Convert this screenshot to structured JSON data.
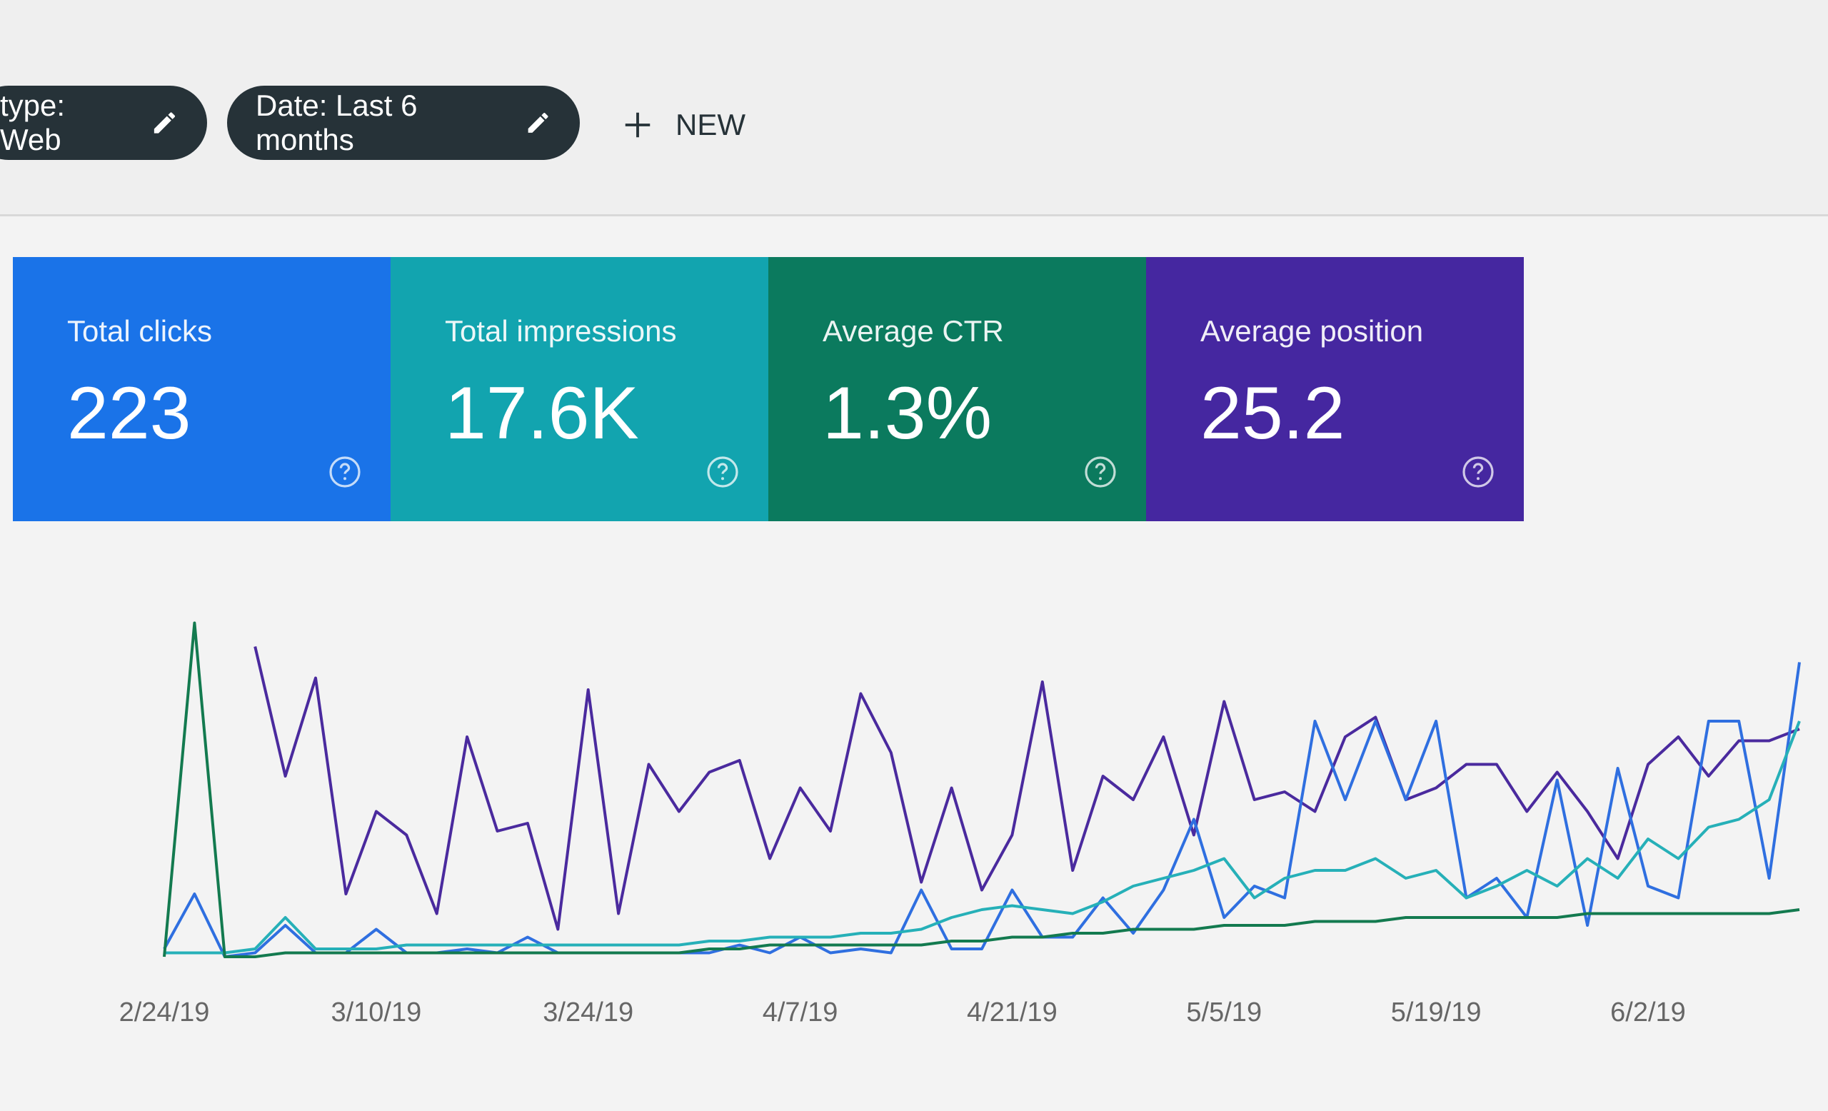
{
  "filters": [
    {
      "label": "type: Web"
    },
    {
      "label": "Date: Last 6 months"
    }
  ],
  "new_button": "NEW",
  "cards": [
    {
      "label": "Total clicks",
      "value": "223",
      "color": "#1a73e8"
    },
    {
      "label": "Total impressions",
      "value": "17.6K",
      "color": "#12a4af"
    },
    {
      "label": "Average CTR",
      "value": "1.3%",
      "color": "#0b7a5e"
    },
    {
      "label": "Average position",
      "value": "25.2",
      "color": "#4527a0"
    }
  ],
  "chart_data": {
    "type": "line",
    "categories": [
      "2/24/19",
      null,
      null,
      null,
      null,
      null,
      null,
      "3/10/19",
      null,
      null,
      null,
      null,
      null,
      null,
      "3/24/19",
      null,
      null,
      null,
      null,
      null,
      null,
      "4/7/19",
      null,
      null,
      null,
      null,
      null,
      null,
      "4/21/19",
      null,
      null,
      null,
      null,
      null,
      null,
      "5/5/19",
      null,
      null,
      null,
      null,
      null,
      null,
      "5/19/19",
      null,
      null,
      null,
      null,
      null,
      null,
      "6/2/19",
      null,
      null,
      null,
      null,
      null
    ],
    "series": [
      {
        "color": "#4a2a9e",
        "values": [
          null,
          null,
          null,
          79,
          46,
          71,
          16,
          37,
          31,
          11,
          56,
          32,
          34,
          7,
          68,
          11,
          49,
          37,
          47,
          50,
          25,
          43,
          32,
          67,
          52,
          19,
          43,
          17,
          31,
          70,
          22,
          46,
          40,
          56,
          31,
          65,
          40,
          42,
          37,
          56,
          61,
          40,
          43,
          49,
          49,
          37,
          47,
          37,
          25,
          49,
          56,
          46,
          55,
          55,
          58
        ]
      },
      {
        "color": "#2f6fe0",
        "values": [
          2,
          16,
          0,
          1,
          8,
          1,
          1,
          7,
          1,
          1,
          2,
          1,
          5,
          1,
          1,
          1,
          1,
          1,
          1,
          3,
          1,
          5,
          1,
          2,
          1,
          17,
          2,
          2,
          17,
          5,
          5,
          15,
          6,
          17,
          35,
          10,
          18,
          15,
          60,
          40,
          60,
          40,
          60,
          15,
          20,
          10,
          45,
          8,
          48,
          18,
          15,
          60,
          60,
          20,
          75
        ]
      },
      {
        "color": "#26b0b8",
        "values": [
          1,
          1,
          1,
          2,
          10,
          2,
          2,
          2,
          3,
          3,
          3,
          3,
          3,
          3,
          3,
          3,
          3,
          3,
          4,
          4,
          5,
          5,
          5,
          6,
          6,
          7,
          10,
          12,
          13,
          12,
          11,
          14,
          18,
          20,
          22,
          25,
          15,
          20,
          22,
          22,
          25,
          20,
          22,
          15,
          18,
          22,
          18,
          25,
          20,
          30,
          25,
          33,
          35,
          40,
          60
        ]
      },
      {
        "color": "#137a4f",
        "values": [
          0,
          85,
          0,
          0,
          1,
          1,
          1,
          1,
          1,
          1,
          1,
          1,
          1,
          1,
          1,
          1,
          1,
          1,
          2,
          2,
          3,
          3,
          3,
          3,
          3,
          3,
          4,
          4,
          5,
          5,
          6,
          6,
          7,
          7,
          7,
          8,
          8,
          8,
          9,
          9,
          9,
          10,
          10,
          10,
          10,
          10,
          10,
          11,
          11,
          11,
          11,
          11,
          11,
          11,
          12
        ]
      }
    ],
    "ylim": [
      0,
      100
    ]
  }
}
